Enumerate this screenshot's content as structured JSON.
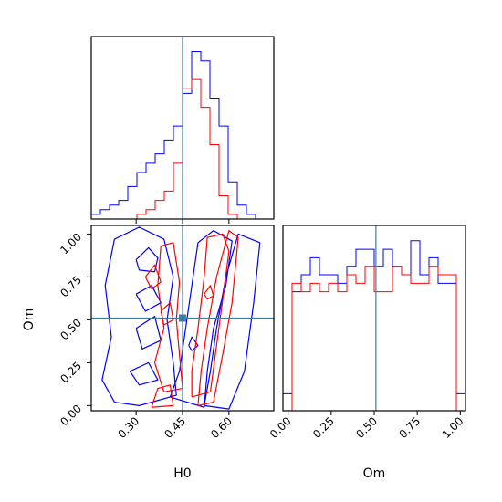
{
  "chart_data": [
    {
      "type": "histogram",
      "panel": "H0 marginal",
      "xlim": [
        0.155,
        0.745
      ],
      "truth": 0.45,
      "series": [
        {
          "color": "#0000ff",
          "bin_edges": [
            0.155,
            0.1845,
            0.214,
            0.2435,
            0.273,
            0.3025,
            0.332,
            0.3615,
            0.391,
            0.4205,
            0.45,
            0.4795,
            0.509,
            0.5385,
            0.568,
            0.5975,
            0.627,
            0.6565,
            0.686,
            0.7155,
            0.745
          ],
          "values": [
            1,
            2,
            3,
            4,
            7,
            10,
            12,
            14,
            17,
            20,
            27,
            36,
            34,
            26,
            20,
            8,
            3,
            1,
            0,
            0
          ]
        },
        {
          "color": "#ff0000",
          "bin_edges": [
            0.155,
            0.1845,
            0.214,
            0.2435,
            0.273,
            0.3025,
            0.332,
            0.3615,
            0.391,
            0.4205,
            0.45,
            0.4795,
            0.509,
            0.5385,
            0.568,
            0.5975,
            0.627,
            0.6565,
            0.686,
            0.7155,
            0.745
          ],
          "values": [
            0,
            0,
            0,
            0,
            0,
            1,
            2,
            4,
            6,
            12,
            28,
            30,
            24,
            16,
            5,
            1,
            0,
            0,
            0,
            0
          ]
        }
      ]
    },
    {
      "type": "contour",
      "panel": "H0 vs Om",
      "xlabel": "H0",
      "ylabel": "Om",
      "xlim": [
        0.155,
        0.745
      ],
      "ylim": [
        -0.03,
        1.05
      ],
      "x_ticks": [
        "0.30",
        "0.45",
        "0.60"
      ],
      "y_ticks": [
        "0.00",
        "0.25",
        "0.50",
        "0.75",
        "1.00"
      ],
      "x_tick_values": [
        0.3,
        0.45,
        0.6
      ],
      "y_tick_values": [
        0.0,
        0.25,
        0.5,
        0.75,
        1.0
      ],
      "truth": [
        0.45,
        0.51
      ],
      "series": [
        {
          "color": "#0000ff",
          "contours": [
            [
              [
                0.23,
                0.02
              ],
              [
                0.31,
                0.0
              ],
              [
                0.43,
                0.06
              ],
              [
                0.42,
                0.25
              ],
              [
                0.4,
                0.5
              ],
              [
                0.42,
                0.75
              ],
              [
                0.39,
                0.97
              ],
              [
                0.31,
                1.04
              ],
              [
                0.23,
                0.97
              ],
              [
                0.2,
                0.7
              ],
              [
                0.22,
                0.4
              ],
              [
                0.19,
                0.15
              ],
              [
                0.23,
                0.02
              ]
            ],
            [
              [
                0.41,
                0.05
              ],
              [
                0.52,
                -0.01
              ],
              [
                0.53,
                0.2
              ],
              [
                0.55,
                0.45
              ],
              [
                0.59,
                0.7
              ],
              [
                0.61,
                0.96
              ],
              [
                0.55,
                1.02
              ],
              [
                0.5,
                0.95
              ],
              [
                0.48,
                0.7
              ],
              [
                0.46,
                0.45
              ],
              [
                0.44,
                0.2
              ],
              [
                0.41,
                0.05
              ]
            ],
            [
              [
                0.52,
                0.0
              ],
              [
                0.6,
                -0.02
              ],
              [
                0.65,
                0.2
              ],
              [
                0.68,
                0.6
              ],
              [
                0.7,
                0.95
              ],
              [
                0.63,
                1.0
              ],
              [
                0.59,
                0.75
              ],
              [
                0.56,
                0.45
              ],
              [
                0.54,
                0.2
              ],
              [
                0.52,
                0.0
              ]
            ],
            [
              [
                0.3,
                0.85
              ],
              [
                0.34,
                0.92
              ],
              [
                0.37,
                0.86
              ],
              [
                0.36,
                0.78
              ],
              [
                0.31,
                0.79
              ],
              [
                0.3,
                0.85
              ]
            ],
            [
              [
                0.3,
                0.65
              ],
              [
                0.35,
                0.7
              ],
              [
                0.38,
                0.6
              ],
              [
                0.33,
                0.55
              ],
              [
                0.3,
                0.65
              ]
            ],
            [
              [
                0.3,
                0.45
              ],
              [
                0.36,
                0.52
              ],
              [
                0.38,
                0.38
              ],
              [
                0.32,
                0.33
              ],
              [
                0.3,
                0.45
              ]
            ],
            [
              [
                0.28,
                0.2
              ],
              [
                0.34,
                0.25
              ],
              [
                0.37,
                0.15
              ],
              [
                0.31,
                0.12
              ],
              [
                0.28,
                0.2
              ]
            ],
            [
              [
                0.47,
                0.35
              ],
              [
                0.48,
                0.4
              ],
              [
                0.5,
                0.35
              ],
              [
                0.48,
                0.32
              ],
              [
                0.47,
                0.35
              ]
            ]
          ]
        },
        {
          "color": "#ff0000",
          "contours": [
            [
              [
                0.39,
                0.08
              ],
              [
                0.45,
                0.1
              ],
              [
                0.44,
                0.3
              ],
              [
                0.43,
                0.5
              ],
              [
                0.44,
                0.72
              ],
              [
                0.42,
                0.95
              ],
              [
                0.38,
                0.93
              ],
              [
                0.37,
                0.7
              ],
              [
                0.39,
                0.45
              ],
              [
                0.36,
                0.25
              ],
              [
                0.39,
                0.08
              ]
            ],
            [
              [
                0.48,
                0.05
              ],
              [
                0.54,
                0.08
              ],
              [
                0.56,
                0.35
              ],
              [
                0.58,
                0.62
              ],
              [
                0.6,
                0.9
              ],
              [
                0.58,
                1.0
              ],
              [
                0.53,
                0.98
              ],
              [
                0.52,
                0.75
              ],
              [
                0.5,
                0.45
              ],
              [
                0.48,
                0.2
              ],
              [
                0.48,
                0.05
              ]
            ],
            [
              [
                0.5,
                0.0
              ],
              [
                0.55,
                0.02
              ],
              [
                0.58,
                0.3
              ],
              [
                0.61,
                0.6
              ],
              [
                0.63,
                0.98
              ],
              [
                0.6,
                1.02
              ],
              [
                0.56,
                0.75
              ],
              [
                0.53,
                0.45
              ],
              [
                0.51,
                0.2
              ],
              [
                0.5,
                0.0
              ]
            ],
            [
              [
                0.35,
                -0.01
              ],
              [
                0.42,
                0.0
              ],
              [
                0.41,
                0.12
              ],
              [
                0.37,
                0.1
              ],
              [
                0.35,
                -0.01
              ]
            ],
            [
              [
                0.33,
                0.75
              ],
              [
                0.36,
                0.82
              ],
              [
                0.38,
                0.72
              ],
              [
                0.35,
                0.68
              ],
              [
                0.33,
                0.75
              ]
            ],
            [
              [
                0.38,
                0.55
              ],
              [
                0.41,
                0.6
              ],
              [
                0.42,
                0.5
              ],
              [
                0.39,
                0.47
              ],
              [
                0.38,
                0.55
              ]
            ],
            [
              [
                0.52,
                0.65
              ],
              [
                0.54,
                0.7
              ],
              [
                0.55,
                0.64
              ],
              [
                0.53,
                0.62
              ],
              [
                0.52,
                0.65
              ]
            ]
          ]
        }
      ]
    },
    {
      "type": "histogram",
      "panel": "Om marginal",
      "xlabel": "Om",
      "xlim": [
        -0.03,
        1.03
      ],
      "x_ticks": [
        "0.00",
        "0.25",
        "0.50",
        "0.75",
        "1.00"
      ],
      "x_tick_values": [
        0.0,
        0.25,
        0.5,
        0.75,
        1.0
      ],
      "truth": 0.51,
      "series": [
        {
          "color": "#0000ff",
          "bin_edges": [
            -0.03,
            0.023,
            0.076,
            0.129,
            0.182,
            0.235,
            0.288,
            0.341,
            0.394,
            0.447,
            0.5,
            0.553,
            0.606,
            0.659,
            0.712,
            0.765,
            0.818,
            0.871,
            0.924,
            0.977,
            1.03
          ],
          "values": [
            2,
            14,
            16,
            18,
            16,
            16,
            15,
            17,
            19,
            19,
            17,
            19,
            17,
            16,
            20,
            16,
            18,
            15,
            15,
            2
          ]
        },
        {
          "color": "#ff0000",
          "bin_edges": [
            -0.03,
            0.023,
            0.076,
            0.129,
            0.182,
            0.235,
            0.288,
            0.341,
            0.394,
            0.447,
            0.5,
            0.553,
            0.606,
            0.659,
            0.712,
            0.765,
            0.818,
            0.871,
            0.924,
            0.977,
            1.03
          ],
          "values": [
            0,
            15,
            14,
            15,
            14,
            15,
            14,
            16,
            15,
            17,
            14,
            14,
            17,
            16,
            15,
            15,
            17,
            16,
            16,
            0
          ]
        }
      ]
    }
  ]
}
